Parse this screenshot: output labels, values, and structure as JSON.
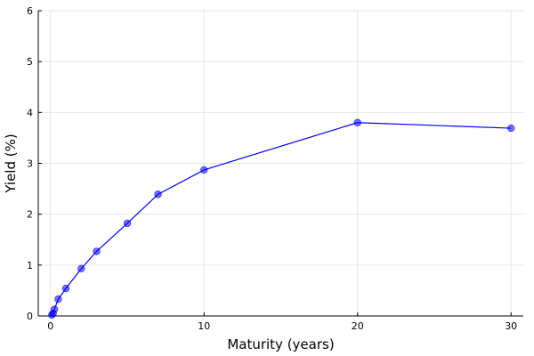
{
  "chart_data": {
    "type": "line",
    "xlabel": "Maturity (years)",
    "ylabel": "Yield (%)",
    "xlim": [
      -0.8,
      30.8
    ],
    "ylim": [
      0,
      6
    ],
    "xticks": [
      0,
      10,
      20,
      30
    ],
    "yticks": [
      0,
      1,
      2,
      3,
      4,
      5,
      6
    ],
    "grid": true,
    "series": [
      {
        "color": "#0000ff",
        "markers": true,
        "x": [
          0.0833,
          0.1667,
          0.25,
          0.5,
          1,
          2,
          3,
          5,
          7,
          10,
          20,
          30
        ],
        "y": [
          0.02,
          0.05,
          0.13,
          0.33,
          0.54,
          0.93,
          1.27,
          1.82,
          2.39,
          2.87,
          3.8,
          3.69
        ]
      }
    ]
  }
}
